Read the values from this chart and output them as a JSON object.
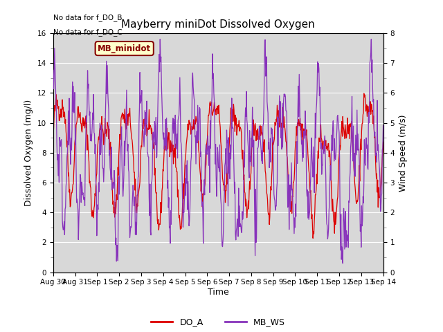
{
  "title": "Mayberry miniDot Dissolved Oxygen",
  "xlabel": "Time",
  "ylabel_left": "Dissolved Oxygen (mg/l)",
  "ylabel_right": "Wind Speed (m/s)",
  "annotation_line1": "No data for f_DO_B",
  "annotation_line2": "No data for f_DO_C",
  "legend_box_label": "MB_minidot",
  "ylim_left": [
    0,
    16
  ],
  "ylim_right": [
    0.0,
    8.0
  ],
  "yticks_left": [
    0,
    2,
    4,
    6,
    8,
    10,
    12,
    14,
    16
  ],
  "yticks_right": [
    0.0,
    1.0,
    2.0,
    3.0,
    4.0,
    5.0,
    6.0,
    7.0,
    8.0
  ],
  "xtick_labels": [
    "Aug 30",
    "Aug 31",
    "Sep 1",
    "Sep 2",
    "Sep 3",
    "Sep 4",
    "Sep 5",
    "Sep 6",
    "Sep 7",
    "Sep 8",
    "Sep 9",
    "Sep 10",
    "Sep 11",
    "Sep 12",
    "Sep 13",
    "Sep 14"
  ],
  "do_color": "#dd0000",
  "ws_color": "#8833bb",
  "background_color": "#d8d8d8",
  "legend_box_color": "#ffffcc",
  "legend_box_edge": "#880000",
  "grid_color": "#ffffff",
  "fig_bg": "#ffffff",
  "minor_tick_color": "#888888"
}
